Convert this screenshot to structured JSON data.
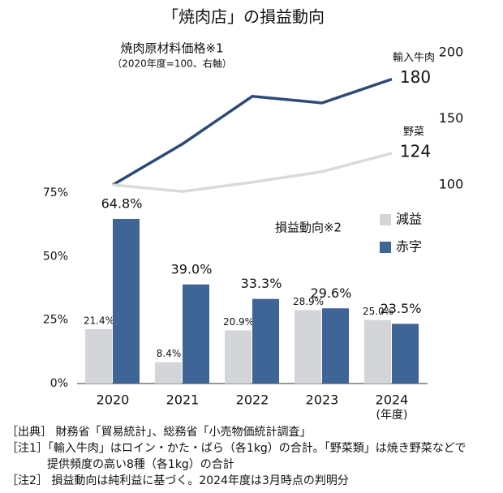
{
  "chart_data": {
    "type": "bar",
    "title": "「焼肉店」の損益動向",
    "annotations": [
      "焼肉原材料価格※1",
      "（2020年度=100、右軸）",
      "損益動向※2"
    ],
    "x_label": "(年度)",
    "categories": [
      "2020",
      "2021",
      "2022",
      "2023",
      "2024"
    ],
    "series": [
      {
        "name": "減益",
        "type": "bar",
        "color": "#d3d5d8",
        "values": [
          21.4,
          8.4,
          20.9,
          28.9,
          25.0
        ],
        "value_labels": [
          "21.4%",
          "8.4%",
          "20.9%",
          "28.9%",
          "25.0%"
        ]
      },
      {
        "name": "赤字",
        "type": "bar",
        "color": "#3e6595",
        "values": [
          64.8,
          39.0,
          33.3,
          29.6,
          23.5
        ],
        "value_labels": [
          "64.8%",
          "39.0%",
          "33.3%",
          "29.6%",
          "23.5%"
        ]
      },
      {
        "name": "輸入牛肉",
        "type": "line",
        "axis": "y2",
        "color": "#2c4a78",
        "values": [
          100,
          131,
          167,
          162,
          180
        ]
      },
      {
        "name": "野菜",
        "type": "line",
        "axis": "y2",
        "color": "#d8dadd",
        "values": [
          100,
          95,
          102,
          110,
          124
        ]
      }
    ],
    "ylim": [
      0,
      75
    ],
    "yticks": [
      {
        "value": 0,
        "label": "0%"
      },
      {
        "value": 25,
        "label": "25%"
      },
      {
        "value": 50,
        "label": "50%"
      },
      {
        "value": 75,
        "label": "75%"
      }
    ],
    "y2lim": [
      100,
      200
    ],
    "y2ticks": [
      100,
      150,
      200
    ],
    "grid": false
  },
  "notes": [
    "［出典］ 財務省「貿易統計」、総務省「小売物価統計調査」",
    "［注1］「輸入牛肉」はロイン・かた・ばら（各1kg）の合計。「野菜類」は焼き野菜などで",
    "提供頻度の高い8種（各1kg）の合計",
    "［注2］ 損益動向は純利益に基づく。2024年度は3月時点の判明分"
  ]
}
